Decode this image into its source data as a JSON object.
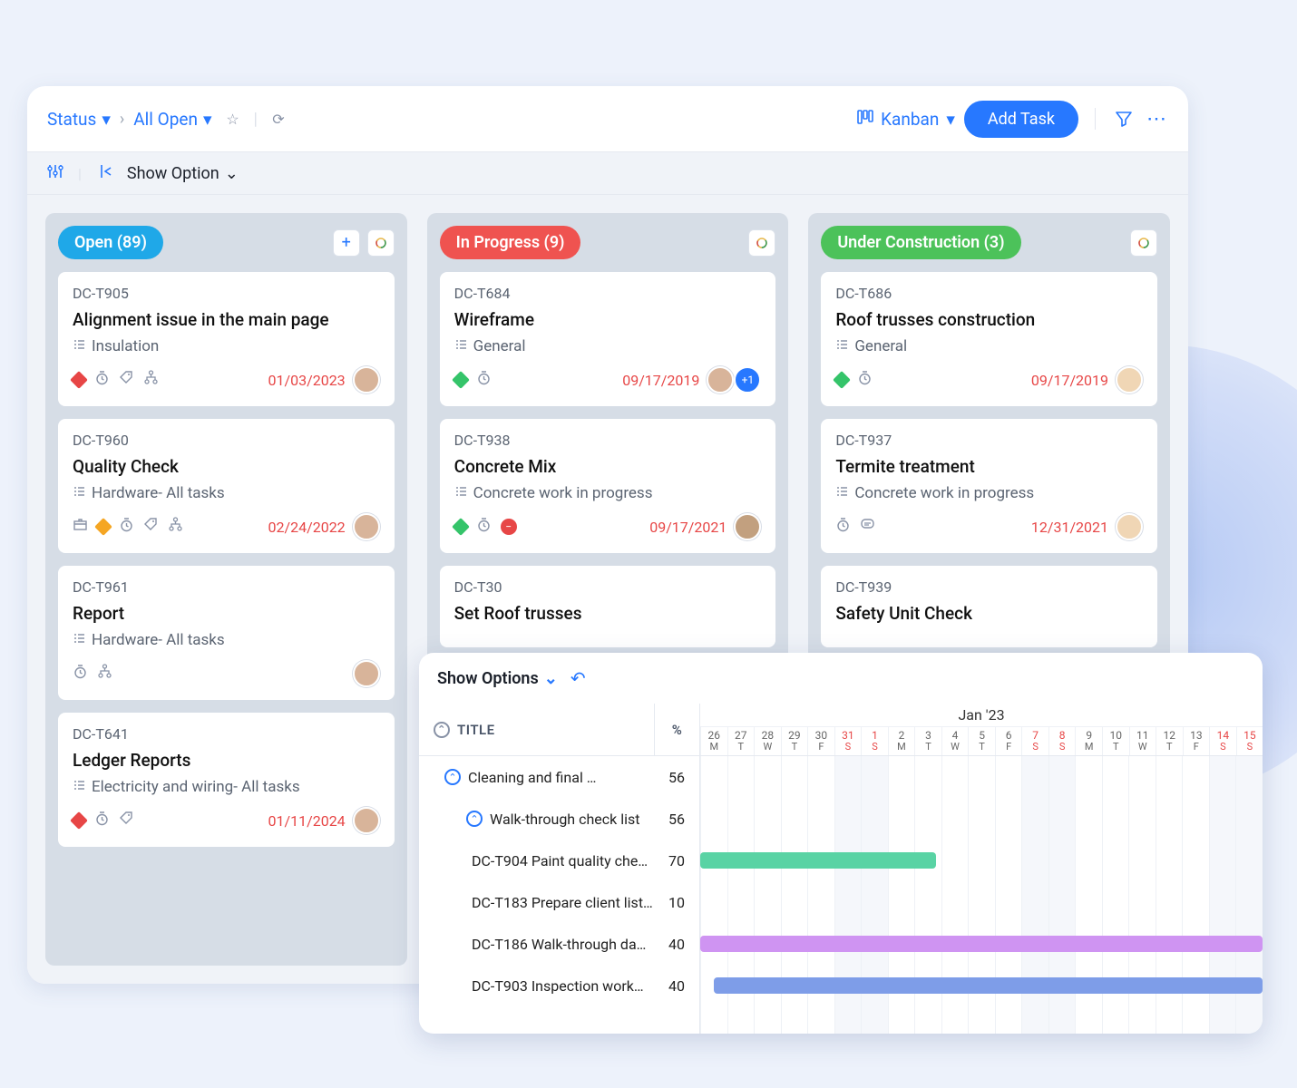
{
  "breadcrumb": {
    "status": "Status",
    "view": "All Open"
  },
  "viewToggle": "Kanban",
  "addTask": "Add Task",
  "showOption": "Show Option",
  "columns": [
    {
      "label": "Open (89)",
      "color": "blue",
      "hasPlus": true,
      "cards": [
        {
          "id": "DC-T905",
          "title": "Alignment issue in the main page",
          "cat": "Insulation",
          "date": "01/03/2023",
          "icons": [
            "d-red",
            "timer",
            "tag",
            "tree"
          ],
          "avatar": "b1"
        },
        {
          "id": "DC-T960",
          "title": "Quality Check",
          "cat": "Hardware- All tasks",
          "date": "02/24/2022",
          "icons": [
            "box",
            "d-orange",
            "timer",
            "tag",
            "tree"
          ],
          "avatar": "b1"
        },
        {
          "id": "DC-T961",
          "title": "Report",
          "cat": "Hardware- All tasks",
          "date": "",
          "icons": [
            "timer",
            "tree"
          ],
          "avatar": "b1"
        },
        {
          "id": "DC-T641",
          "title": "Ledger Reports",
          "cat": "Electricity and wiring- All tasks",
          "date": "01/11/2024",
          "icons": [
            "d-red",
            "timer",
            "tag"
          ],
          "avatar": "b1"
        }
      ]
    },
    {
      "label": "In Progress (9)",
      "color": "red",
      "hasPlus": false,
      "cards": [
        {
          "id": "DC-T684",
          "title": "Wireframe",
          "cat": "General",
          "date": "09/17/2019",
          "icons": [
            "d-green",
            "timer"
          ],
          "avatar": "b1",
          "extra": "+1"
        },
        {
          "id": "DC-T938",
          "title": "Concrete Mix",
          "cat": "Concrete work in progress",
          "date": "09/17/2021",
          "icons": [
            "d-green",
            "timer",
            "stop"
          ],
          "avatar": "b3"
        },
        {
          "id": "DC-T30",
          "title": "Set Roof trusses",
          "cat": "",
          "date": "",
          "icons": [],
          "avatar": ""
        }
      ]
    },
    {
      "label": "Under Construction (3)",
      "color": "green",
      "hasPlus": false,
      "cards": [
        {
          "id": "DC-T686",
          "title": "Roof trusses construction",
          "cat": "General",
          "date": "09/17/2019",
          "icons": [
            "d-green",
            "timer"
          ],
          "avatar": "b2"
        },
        {
          "id": "DC-T937",
          "title": "Termite treatment",
          "cat": "Concrete work in progress",
          "date": "12/31/2021",
          "icons": [
            "timer",
            "chat"
          ],
          "avatar": "b2"
        },
        {
          "id": "DC-T939",
          "title": "Safety Unit Check",
          "cat": "",
          "date": "",
          "icons": [],
          "avatar": ""
        }
      ]
    }
  ],
  "gantt": {
    "showOptions": "Show Options",
    "titleHeader": "TITLE",
    "pctHeader": "%",
    "month": "Jan '23",
    "days": [
      {
        "n": "26",
        "w": "M"
      },
      {
        "n": "27",
        "w": "T"
      },
      {
        "n": "28",
        "w": "W"
      },
      {
        "n": "29",
        "w": "T"
      },
      {
        "n": "30",
        "w": "F"
      },
      {
        "n": "31",
        "w": "S",
        "sat": true
      },
      {
        "n": "1",
        "w": "S",
        "sun": true
      },
      {
        "n": "2",
        "w": "M"
      },
      {
        "n": "3",
        "w": "T"
      },
      {
        "n": "4",
        "w": "W"
      },
      {
        "n": "5",
        "w": "T"
      },
      {
        "n": "6",
        "w": "F"
      },
      {
        "n": "7",
        "w": "S",
        "sat": true
      },
      {
        "n": "8",
        "w": "S",
        "sun": true
      },
      {
        "n": "9",
        "w": "M"
      },
      {
        "n": "10",
        "w": "T"
      },
      {
        "n": "11",
        "w": "W"
      },
      {
        "n": "12",
        "w": "T"
      },
      {
        "n": "13",
        "w": "F"
      },
      {
        "n": "14",
        "w": "S",
        "sat": true
      },
      {
        "n": "15",
        "w": "S",
        "sun": true
      }
    ],
    "rows": [
      {
        "title": "Cleaning and final …",
        "pct": "56",
        "indent": 1,
        "chev": true
      },
      {
        "title": "Walk-through check list",
        "pct": "56",
        "indent": 2,
        "chev": true
      },
      {
        "title": "DC-T904 Paint quality che…",
        "pct": "70",
        "indent": 3,
        "bar": {
          "start": 0,
          "end": 8.8,
          "color": "#59d3a4"
        }
      },
      {
        "title": "DC-T183 Prepare client list…",
        "pct": "10",
        "indent": 3
      },
      {
        "title": "DC-T186 Walk-through da…",
        "pct": "40",
        "indent": 3,
        "bar": {
          "start": 0,
          "end": 21,
          "color": "#cf94f2"
        }
      },
      {
        "title": "DC-T903 Inspection work…",
        "pct": "40",
        "indent": 3,
        "bar": {
          "start": 0.5,
          "end": 21,
          "color": "#7e9de8"
        }
      }
    ]
  }
}
